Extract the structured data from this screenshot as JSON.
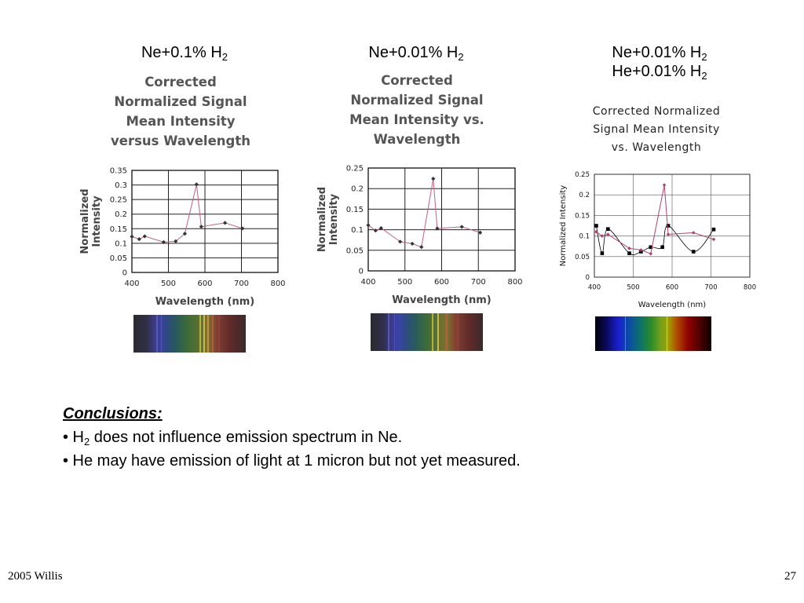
{
  "panels": [
    {
      "head_base": "Ne+0.1% H",
      "head_sub": "2"
    },
    {
      "head_base": "Ne+0.01% H",
      "head_sub": "2"
    },
    {
      "head_base": "Ne+0.01% H",
      "head_sub": "2",
      "head2_base": "He+0.01% H",
      "head2_sub": "2"
    }
  ],
  "chart_data": [
    {
      "type": "line",
      "title_lines": [
        "Corrected",
        "Normalized Signal",
        "Mean Intensity",
        "versus Wavelength"
      ],
      "xlabel": "Wavelength (nm)",
      "ylabel_lines": [
        "Normalized",
        "Intensity"
      ],
      "xlim": [
        400,
        800
      ],
      "ylim": [
        0,
        0.35
      ],
      "xticks": [
        "400",
        "500",
        "600",
        "700",
        "800"
      ],
      "yticks": [
        "0",
        "0.05",
        "0.1",
        "0.15",
        "0.2",
        "0.25",
        "0.3",
        "0.35"
      ],
      "grid": true,
      "series": [
        {
          "x": [
            400,
            420,
            435,
            487,
            520,
            545,
            577,
            590,
            655,
            703
          ],
          "y": [
            0.123,
            0.114,
            0.124,
            0.104,
            0.107,
            0.133,
            0.302,
            0.157,
            0.17,
            0.151
          ],
          "color": "#c06080",
          "marker": "diamond"
        }
      ]
    },
    {
      "type": "line",
      "title_lines": [
        "Corrected",
        "Normalized Signal",
        "Mean Intensity vs.",
        "Wavelength"
      ],
      "xlabel": "Wavelength (nm)",
      "ylabel_lines": [
        "Normalized",
        "Intensity"
      ],
      "xlim": [
        400,
        800
      ],
      "ylim": [
        0,
        0.25
      ],
      "xticks": [
        "400",
        "500",
        "600",
        "700",
        "800"
      ],
      "yticks": [
        "0",
        "0.05",
        "0.1",
        "0.15",
        "0.2",
        "0.25"
      ],
      "grid": true,
      "series": [
        {
          "x": [
            400,
            420,
            435,
            487,
            520,
            545,
            577,
            588,
            655,
            705
          ],
          "y": [
            0.111,
            0.098,
            0.104,
            0.071,
            0.066,
            0.058,
            0.224,
            0.103,
            0.107,
            0.093
          ],
          "color": "#c06080",
          "marker": "diamond"
        }
      ]
    },
    {
      "type": "line",
      "title_lines": [
        "Corrected Normalized",
        "Signal Mean Intensity",
        "vs. Wavelength"
      ],
      "xlabel": "Wavelength (nm)",
      "ylabel": "Normalized Intensity",
      "xlim": [
        400,
        800
      ],
      "ylim": [
        0,
        0.25
      ],
      "xticks": [
        "400",
        "500",
        "600",
        "700",
        "800"
      ],
      "yticks": [
        "0",
        "0.05",
        "0.1",
        "0.15",
        "0.2",
        "0.25"
      ],
      "grid": true,
      "series": [
        {
          "x": [
            405,
            420,
            435,
            490,
            520,
            545,
            575,
            590,
            655,
            707
          ],
          "y": [
            0.125,
            0.058,
            0.117,
            0.058,
            0.062,
            0.073,
            0.073,
            0.125,
            0.062,
            0.116
          ],
          "color": "#000000",
          "marker": "square",
          "smooth": true
        },
        {
          "x": [
            405,
            420,
            435,
            490,
            520,
            545,
            580,
            590,
            655,
            707
          ],
          "y": [
            0.11,
            0.1,
            0.104,
            0.07,
            0.066,
            0.057,
            0.224,
            0.104,
            0.108,
            0.092
          ],
          "color": "#b04070",
          "marker": "diamond"
        }
      ]
    }
  ],
  "conclusions": {
    "heading": "Conclusions:",
    "line1_a": "• H",
    "line1_sub": "2",
    "line1_b": " does not influence emission spectrum in Ne.",
    "line2": "• He may have emission of light at 1 micron but not yet measured."
  },
  "footer": {
    "left": "2005 Willis",
    "right": "27"
  }
}
